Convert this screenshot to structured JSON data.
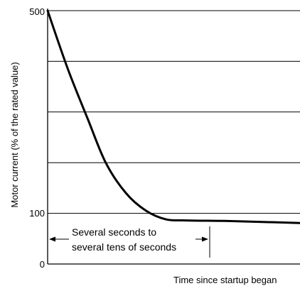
{
  "chart_data": {
    "type": "line",
    "title": "",
    "xlabel": "Time since startup began",
    "ylabel": "Motor current (% of the rated value)",
    "ylim": [
      0,
      500
    ],
    "y_tick_labels": [
      "0",
      "100",
      "500"
    ],
    "gridlines_y": [
      100,
      200,
      300,
      400,
      500
    ],
    "x_axis_numeric": false,
    "series": [
      {
        "values": [
          {
            "x": 0.0,
            "y": 500
          },
          {
            "x": 0.08,
            "y": 385
          },
          {
            "x": 0.16,
            "y": 285
          },
          {
            "x": 0.23,
            "y": 200
          },
          {
            "x": 0.31,
            "y": 140
          },
          {
            "x": 0.39,
            "y": 105
          },
          {
            "x": 0.47,
            "y": 88
          },
          {
            "x": 0.55,
            "y": 86
          },
          {
            "x": 0.7,
            "y": 85
          },
          {
            "x": 0.85,
            "y": 83
          },
          {
            "x": 1.0,
            "y": 81
          }
        ]
      }
    ],
    "annotation": {
      "lines": [
        "Several seconds to",
        "several tens of seconds"
      ],
      "span": [
        0.0,
        0.65
      ]
    }
  }
}
